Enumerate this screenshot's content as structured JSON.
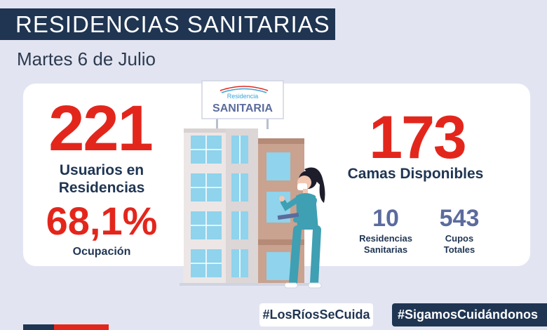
{
  "header": {
    "title": "RESIDENCIAS SANITARIAS",
    "date": "Martes 6 de Julio"
  },
  "sign": {
    "line1": "Residencia",
    "line2": "SANITARIA"
  },
  "left_stats": {
    "users_value": "221",
    "users_label_line1": "Usuarios en",
    "users_label_line2": "Residencias",
    "occupancy_value": "68,1%",
    "occupancy_label": "Ocupación"
  },
  "right_stats": {
    "beds_value": "173",
    "beds_label": "Camas Disponibles",
    "residences_value": "10",
    "residences_label_line1": "Residencias",
    "residences_label_line2": "Sanitarias",
    "capacity_value": "543",
    "capacity_label_line1": "Cupos",
    "capacity_label_line2": "Totales"
  },
  "footer": {
    "hashtag1": "#LosRíosSeCuida",
    "hashtag2": "#SigamosCuidándonos"
  },
  "colors": {
    "navy": "#1f3552",
    "red": "#e3261c",
    "slate_blue": "#5b6b9d",
    "background": "#e2e5f1"
  }
}
